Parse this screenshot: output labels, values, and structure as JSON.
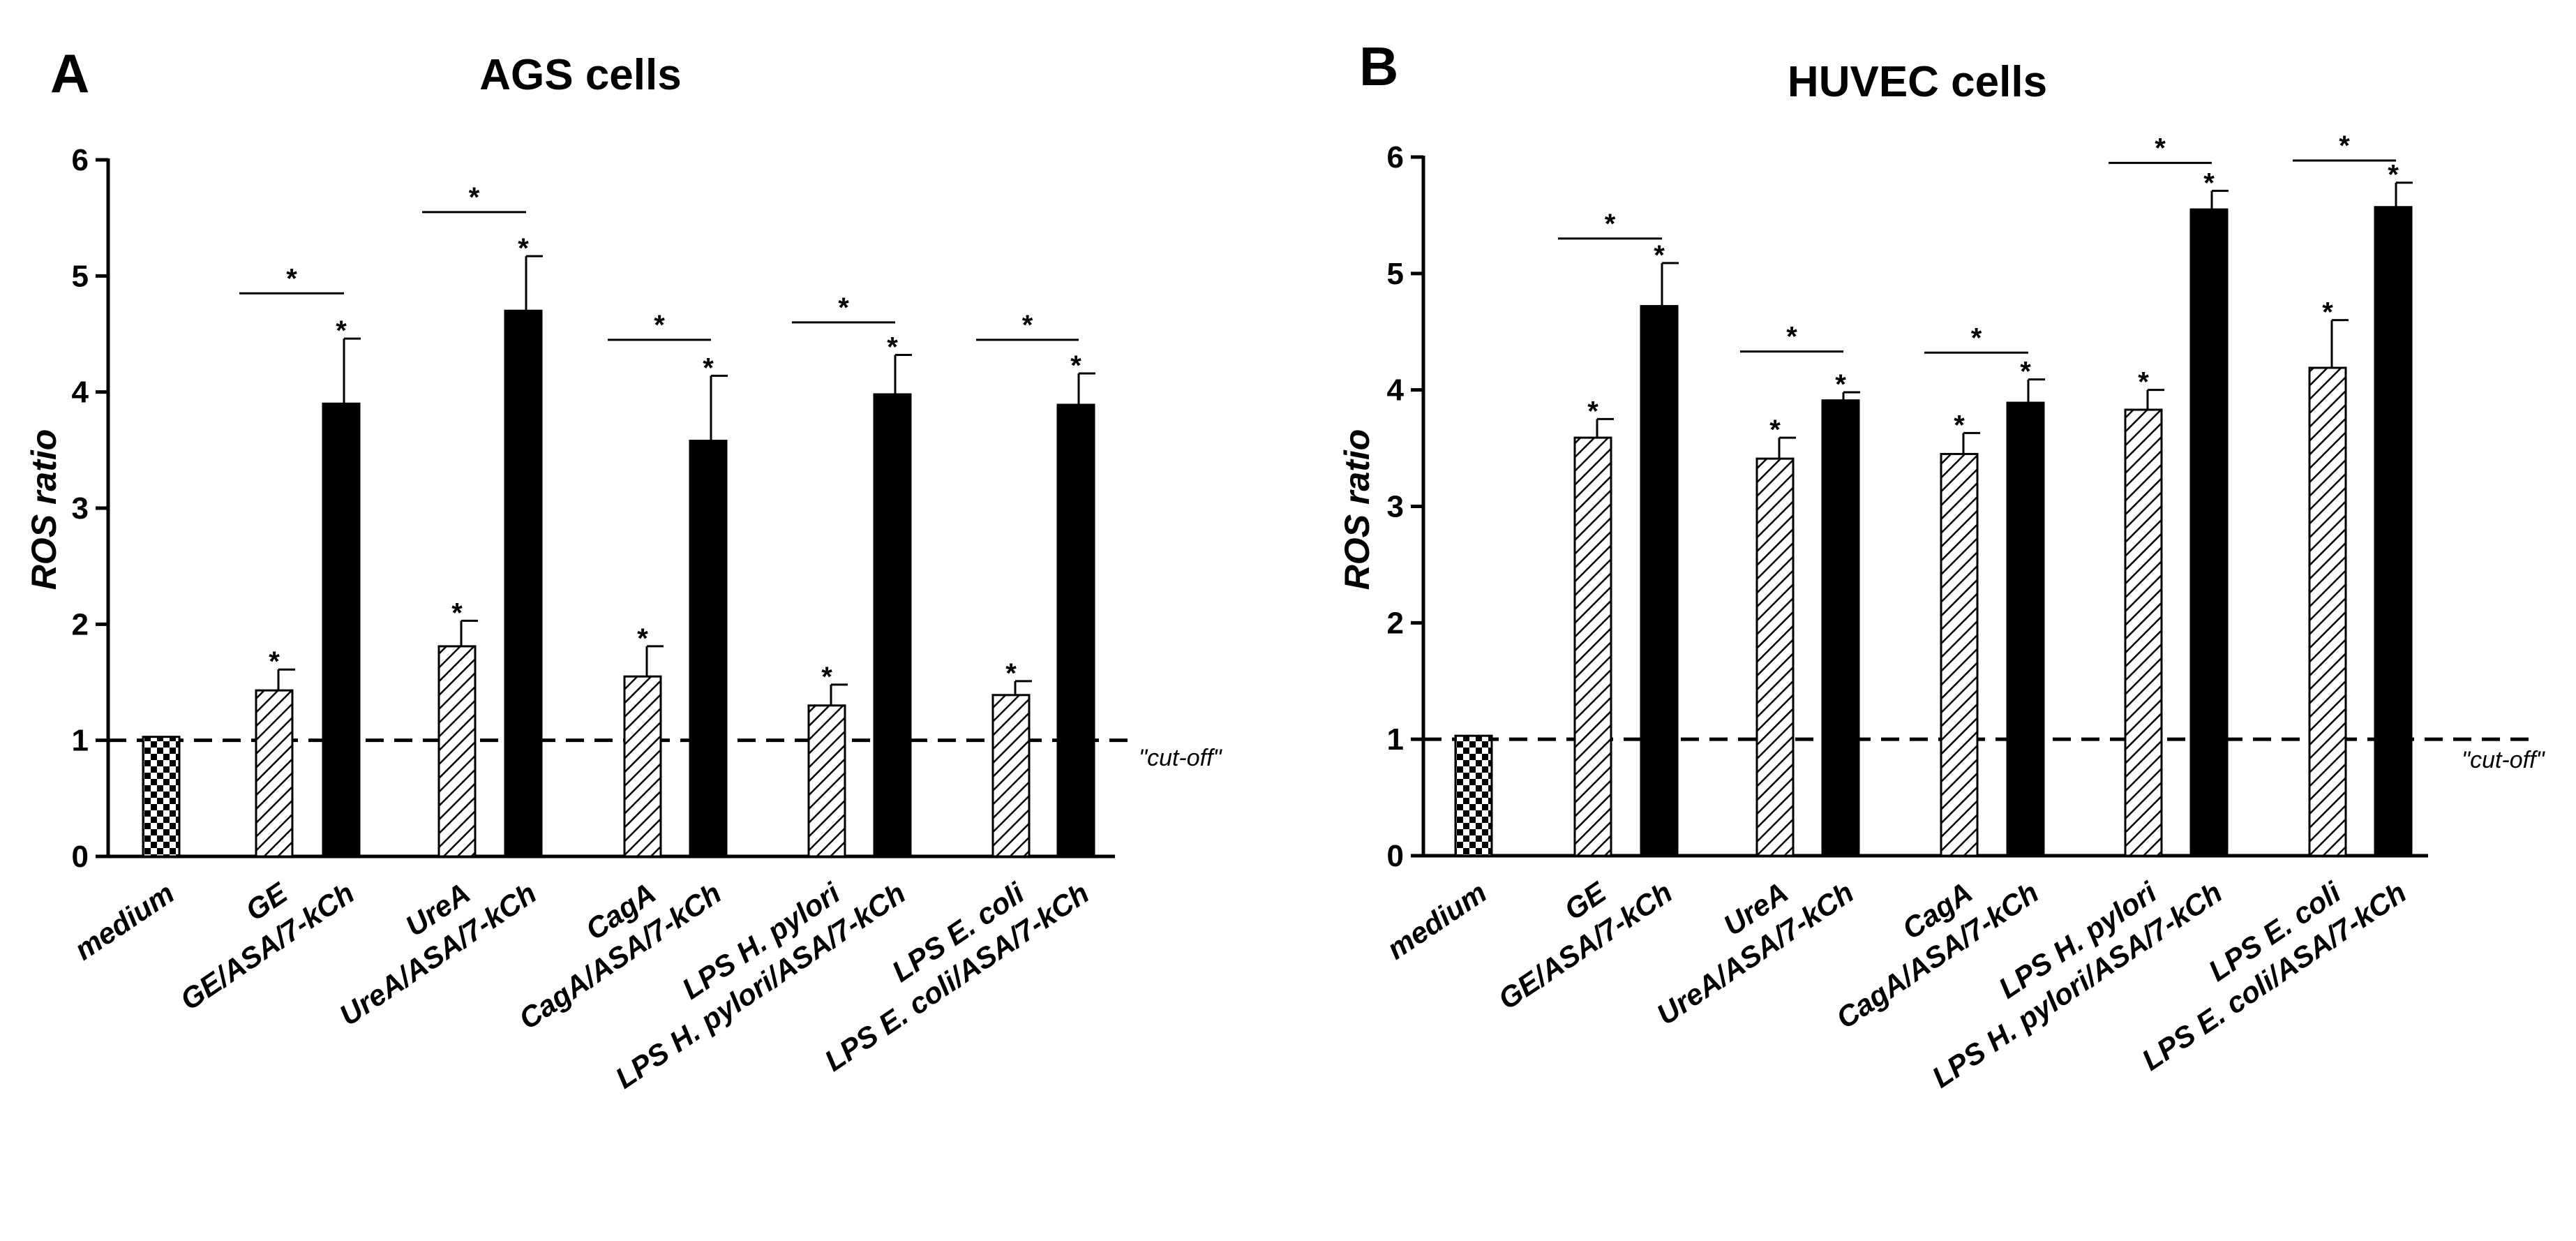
{
  "colors": {
    "black": "#000000",
    "white": "#ffffff",
    "hatch": "#000000"
  },
  "chart_data": [
    {
      "type": "bar",
      "panel_letter": "A",
      "title": "AGS cells",
      "xlabel": "",
      "ylabel": "ROS ratio",
      "ylim": [
        0,
        6
      ],
      "yticks": [
        "0",
        "1",
        "2",
        "3",
        "4",
        "5",
        "6"
      ],
      "grid": false,
      "cutoff": {
        "value": 1,
        "label": "\"cut-off\""
      },
      "bars": [
        {
          "label": "medium",
          "value": 1.03,
          "error": 0,
          "style": "checker",
          "star": ""
        },
        {
          "label": "GE",
          "value": 1.43,
          "error": 0.18,
          "style": "hatch",
          "star": "*"
        },
        {
          "label": "GE/ASA/7-kCh",
          "value": 3.9,
          "error": 0.56,
          "style": "solid",
          "star": "*"
        },
        {
          "label": "UreA",
          "value": 1.81,
          "error": 0.22,
          "style": "hatch",
          "star": "*"
        },
        {
          "label": "UreA/ASA/7-kCh",
          "value": 4.7,
          "error": 0.47,
          "style": "solid",
          "star": "*"
        },
        {
          "label": "CagA",
          "value": 1.55,
          "error": 0.26,
          "style": "hatch",
          "star": "*"
        },
        {
          "label": "CagA/ASA/7-kCh",
          "value": 3.58,
          "error": 0.56,
          "style": "solid",
          "star": "*"
        },
        {
          "label": "LPS H. pylori",
          "value": 1.3,
          "error": 0.18,
          "style": "hatch",
          "star": "*"
        },
        {
          "label": "LPS H. pylori/ASA/7-kCh",
          "value": 3.98,
          "error": 0.34,
          "style": "solid",
          "star": "*"
        },
        {
          "label": "LPS E. coli",
          "value": 1.39,
          "error": 0.12,
          "style": "hatch",
          "star": "*"
        },
        {
          "label": "LPS E. coli/ASA/7-kCh",
          "value": 3.89,
          "error": 0.27,
          "style": "solid",
          "star": "*"
        }
      ],
      "comparisons": [
        {
          "from": 1,
          "to": 2,
          "y": 4.85,
          "label": "*"
        },
        {
          "from": 3,
          "to": 4,
          "y": 5.55,
          "label": "*"
        },
        {
          "from": 5,
          "to": 6,
          "y": 4.45,
          "label": "*"
        },
        {
          "from": 7,
          "to": 8,
          "y": 4.6,
          "label": "*"
        },
        {
          "from": 9,
          "to": 10,
          "y": 4.45,
          "label": "*"
        }
      ]
    },
    {
      "type": "bar",
      "panel_letter": "B",
      "title": "HUVEC cells",
      "xlabel": "",
      "ylabel": "ROS ratio",
      "ylim": [
        0,
        6
      ],
      "yticks": [
        "0",
        "1",
        "2",
        "3",
        "4",
        "5",
        "6"
      ],
      "grid": false,
      "cutoff": {
        "value": 1,
        "label": "\"cut-off\""
      },
      "bars": [
        {
          "label": "medium",
          "value": 1.03,
          "error": 0,
          "style": "checker",
          "star": ""
        },
        {
          "label": "GE",
          "value": 3.59,
          "error": 0.16,
          "style": "hatch",
          "star": "*"
        },
        {
          "label": "GE/ASA/7-kCh",
          "value": 4.72,
          "error": 0.37,
          "style": "solid",
          "star": "*"
        },
        {
          "label": "UreA",
          "value": 3.41,
          "error": 0.18,
          "style": "hatch",
          "star": "*"
        },
        {
          "label": "UreA/ASA/7-kCh",
          "value": 3.91,
          "error": 0.07,
          "style": "solid",
          "star": "*"
        },
        {
          "label": "CagA",
          "value": 3.45,
          "error": 0.18,
          "style": "hatch",
          "star": "*"
        },
        {
          "label": "CagA/ASA/7-kCh",
          "value": 3.89,
          "error": 0.2,
          "style": "solid",
          "star": "*"
        },
        {
          "label": "LPS H. pylori",
          "value": 3.83,
          "error": 0.17,
          "style": "hatch",
          "star": "*"
        },
        {
          "label": "LPS H. pylori/ASA/7-kCh",
          "value": 5.55,
          "error": 0.16,
          "style": "solid",
          "star": "*"
        },
        {
          "label": "LPS E. coli",
          "value": 4.19,
          "error": 0.41,
          "style": "hatch",
          "star": "*"
        },
        {
          "label": "LPS E. coli/ASA/7-kCh",
          "value": 5.57,
          "error": 0.21,
          "style": "solid",
          "star": "*"
        }
      ],
      "comparisons": [
        {
          "from": 1,
          "to": 2,
          "y": 5.3,
          "label": "*"
        },
        {
          "from": 3,
          "to": 4,
          "y": 4.33,
          "label": "*"
        },
        {
          "from": 5,
          "to": 6,
          "y": 4.32,
          "label": "*"
        },
        {
          "from": 7,
          "to": 8,
          "y": 5.95,
          "label": "*"
        },
        {
          "from": 9,
          "to": 10,
          "y": 5.97,
          "label": "*"
        }
      ]
    }
  ]
}
